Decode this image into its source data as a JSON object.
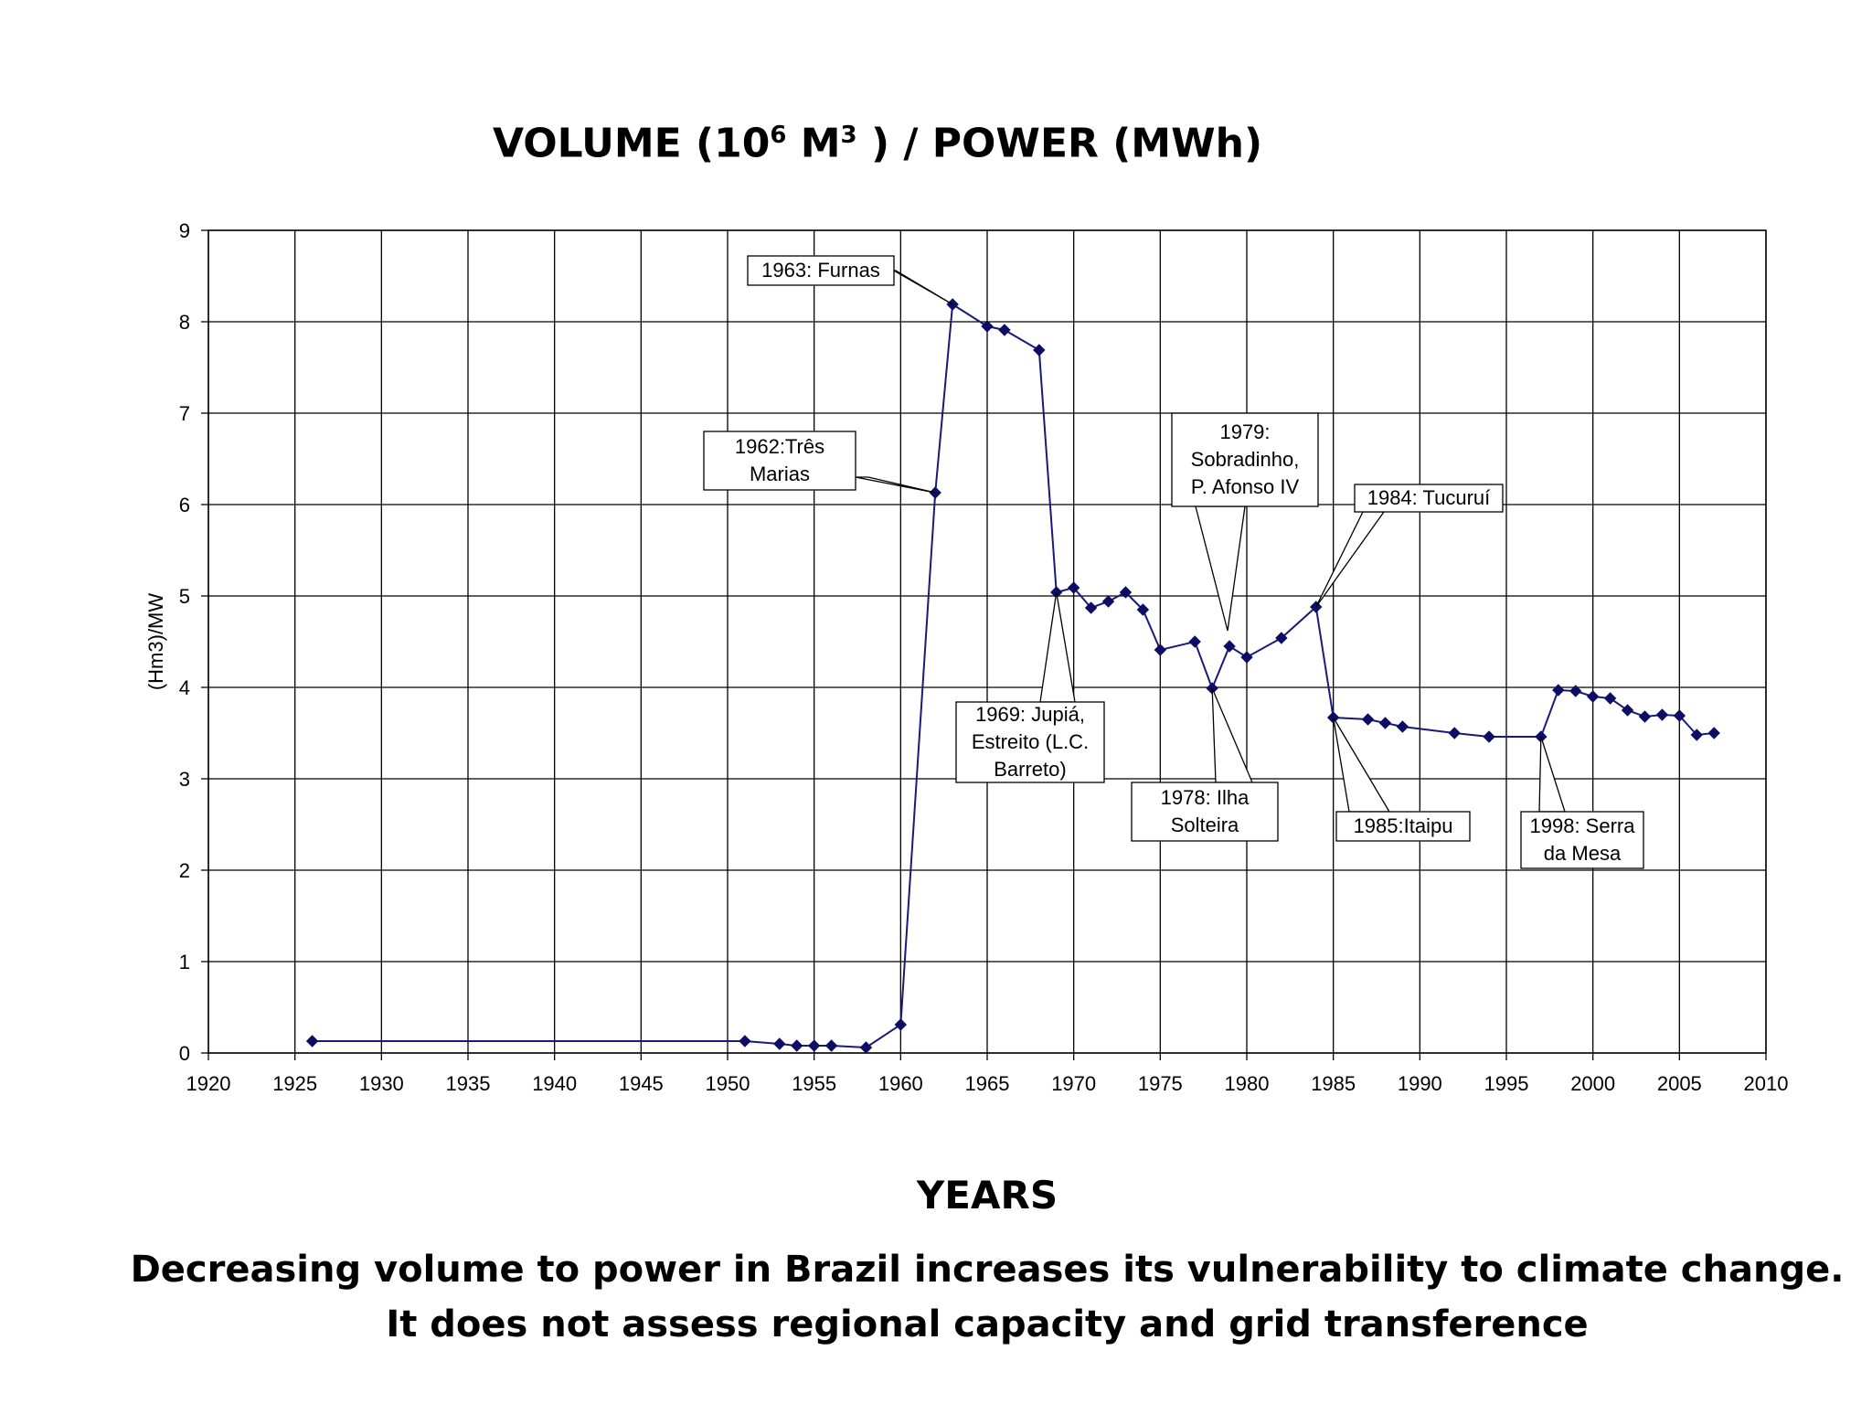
{
  "title": {
    "prefix": "VOLUME (10",
    "sup1": "6",
    "mid": " M",
    "sup2": "3",
    "suffix": " ) / POWER (MWh)"
  },
  "x_axis_title": "YEARS",
  "caption": {
    "line1": "Decreasing volume to power in Brazil increases its vulnerability to climate change.",
    "line2": "It does not assess regional capacity and grid transference"
  },
  "chart_data": {
    "type": "line",
    "title": "VOLUME (10^6 M^3) / POWER (MWh)",
    "xlabel": "YEARS",
    "ylabel": "(Hm3)/MW",
    "xlim": [
      1920,
      2010
    ],
    "ylim": [
      0,
      9
    ],
    "x_ticks": [
      1920,
      1925,
      1930,
      1935,
      1940,
      1945,
      1950,
      1955,
      1960,
      1965,
      1970,
      1975,
      1980,
      1985,
      1990,
      1995,
      2000,
      2005,
      2010
    ],
    "y_ticks": [
      0,
      1,
      2,
      3,
      4,
      5,
      6,
      7,
      8,
      9
    ],
    "grid": true,
    "series": [
      {
        "name": "Volume/Power",
        "color": "#1a1a7a",
        "x": [
          1926,
          1951,
          1953,
          1954,
          1955,
          1956,
          1958,
          1960,
          1962,
          1963,
          1965,
          1966,
          1968,
          1969,
          1970,
          1971,
          1972,
          1973,
          1974,
          1975,
          1977,
          1978,
          1979,
          1980,
          1982,
          1984,
          1985,
          1987,
          1988,
          1989,
          1992,
          1994,
          1997,
          1998,
          1999,
          2000,
          2001,
          2002,
          2003,
          2004,
          2005,
          2006,
          2007
        ],
        "y": [
          0.13,
          0.13,
          0.1,
          0.08,
          0.08,
          0.08,
          0.06,
          0.31,
          6.13,
          8.19,
          7.95,
          7.91,
          7.69,
          5.04,
          5.09,
          4.87,
          4.94,
          5.04,
          4.85,
          4.41,
          4.5,
          3.99,
          4.45,
          4.33,
          4.54,
          4.88,
          3.67,
          3.65,
          3.61,
          3.57,
          3.5,
          3.46,
          3.46,
          3.97,
          3.96,
          3.9,
          3.88,
          3.75,
          3.68,
          3.7,
          3.69,
          3.48,
          3.5
        ]
      }
    ],
    "annotations": [
      {
        "lines": [
          "1963: Furnas"
        ],
        "x": 1963,
        "y": 8.19
      },
      {
        "lines": [
          "1962:Três",
          "Marias"
        ],
        "x": 1962,
        "y": 6.13
      },
      {
        "lines": [
          "1979:",
          "Sobradinho,",
          "P. Afonso IV"
        ],
        "x": 1979,
        "y": 4.45
      },
      {
        "lines": [
          "1984: Tucuruí"
        ],
        "x": 1984,
        "y": 4.88
      },
      {
        "lines": [
          "1969: Jupiá,",
          "Estreito (L.C.",
          "Barreto)"
        ],
        "x": 1969,
        "y": 5.04
      },
      {
        "lines": [
          "1978: Ilha",
          "Solteira"
        ],
        "x": 1978,
        "y": 3.99
      },
      {
        "lines": [
          "1985:Itaipu"
        ],
        "x": 1985,
        "y": 3.67
      },
      {
        "lines": [
          "1998: Serra",
          "da Mesa"
        ],
        "x": 1997,
        "y": 3.46
      }
    ]
  }
}
